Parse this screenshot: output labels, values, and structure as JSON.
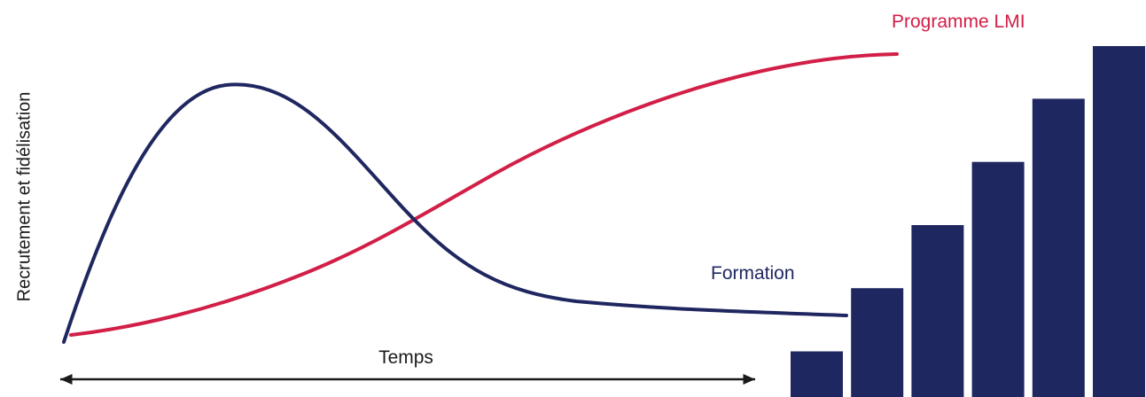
{
  "diagram": {
    "y_axis_label": "Recrutement et fidélisation",
    "x_axis_label": "Temps",
    "series": [
      {
        "name": "Programme LMI",
        "color": "#D21F47",
        "shape": "rising-s-curve"
      },
      {
        "name": "Formation",
        "color": "#1F2760",
        "shape": "early-peak-then-decline"
      }
    ],
    "bars": {
      "color": "#1F2760",
      "count": 6,
      "relative_heights": [
        0.13,
        0.31,
        0.49,
        0.67,
        0.85,
        1.0
      ]
    },
    "colors": {
      "axis": "#1a1a1a",
      "background": "#ffffff"
    }
  }
}
